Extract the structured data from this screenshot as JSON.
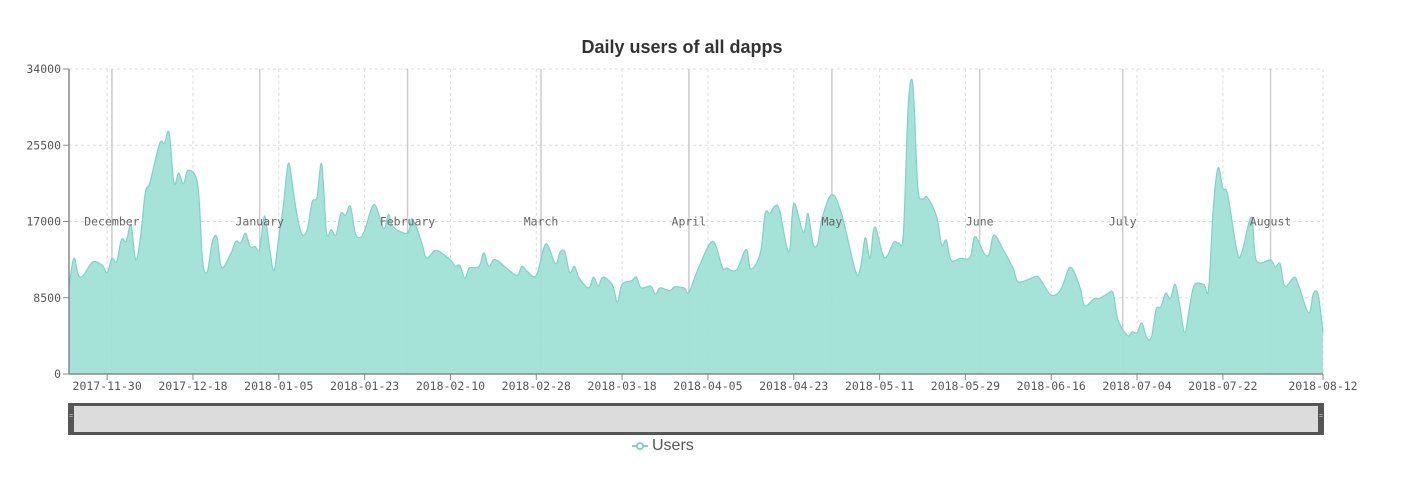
{
  "chart_data": {
    "type": "area",
    "title": "Daily users of all dapps",
    "x_start_date": "2017-11-22",
    "x_unit": "days since start date",
    "xlim_days": [
      0,
      263
    ],
    "ylim": [
      0,
      34000
    ],
    "y_ticks": [
      "0",
      "8500",
      "17000",
      "25500",
      "34000"
    ],
    "y_tick_values": [
      0,
      8500,
      17000,
      25500,
      34000
    ],
    "x_ticks": [
      {
        "day": 8,
        "label": "2017-11-30"
      },
      {
        "day": 26,
        "label": "2017-12-18"
      },
      {
        "day": 44,
        "label": "2018-01-05"
      },
      {
        "day": 62,
        "label": "2018-01-23"
      },
      {
        "day": 80,
        "label": "2018-02-10"
      },
      {
        "day": 98,
        "label": "2018-02-28"
      },
      {
        "day": 116,
        "label": "2018-03-18"
      },
      {
        "day": 134,
        "label": "2018-04-05"
      },
      {
        "day": 152,
        "label": "2018-04-23"
      },
      {
        "day": 170,
        "label": "2018-05-11"
      },
      {
        "day": 188,
        "label": "2018-05-29"
      },
      {
        "day": 206,
        "label": "2018-06-16"
      },
      {
        "day": 224,
        "label": "2018-07-04"
      },
      {
        "day": 242,
        "label": "2018-07-22"
      },
      {
        "day": 263,
        "label": "2018-08-12"
      }
    ],
    "month_markers": [
      {
        "day": 9,
        "label": "December"
      },
      {
        "day": 40,
        "label": "January"
      },
      {
        "day": 71,
        "label": "February"
      },
      {
        "day": 99,
        "label": "March"
      },
      {
        "day": 130,
        "label": "April"
      },
      {
        "day": 160,
        "label": "May"
      },
      {
        "day": 191,
        "label": "June"
      },
      {
        "day": 221,
        "label": "July"
      },
      {
        "day": 252,
        "label": "August"
      }
    ],
    "grid": true,
    "legend": {
      "position": "bottom-center",
      "entries": [
        "Users"
      ]
    },
    "series": [
      {
        "name": "Users",
        "color": "#7ed3c4",
        "fill": "#a0e0d6",
        "points": [
          [
            0,
            9700
          ],
          [
            1,
            12900
          ],
          [
            2,
            11000
          ],
          [
            3,
            11000
          ],
          [
            5,
            12500
          ],
          [
            7,
            12100
          ],
          [
            8,
            11300
          ],
          [
            9,
            12900
          ],
          [
            10,
            12500
          ],
          [
            11,
            15000
          ],
          [
            12,
            14800
          ],
          [
            13,
            16600
          ],
          [
            14,
            12700
          ],
          [
            15,
            15300
          ],
          [
            16,
            20200
          ],
          [
            17,
            21400
          ],
          [
            19,
            25700
          ],
          [
            20,
            25700
          ],
          [
            21,
            26900
          ],
          [
            22,
            21300
          ],
          [
            23,
            22400
          ],
          [
            24,
            21200
          ],
          [
            25,
            22700
          ],
          [
            27,
            21100
          ],
          [
            28,
            12700
          ],
          [
            29,
            11400
          ],
          [
            30,
            14600
          ],
          [
            31,
            15300
          ],
          [
            32,
            11900
          ],
          [
            34,
            13500
          ],
          [
            35,
            14800
          ],
          [
            36,
            14600
          ],
          [
            37,
            15700
          ],
          [
            38,
            14200
          ],
          [
            39,
            14200
          ],
          [
            40,
            13900
          ],
          [
            41,
            17600
          ],
          [
            42,
            14300
          ],
          [
            43,
            11500
          ],
          [
            44,
            15300
          ],
          [
            45,
            19000
          ],
          [
            46,
            23500
          ],
          [
            47,
            20500
          ],
          [
            48,
            17200
          ],
          [
            49,
            15500
          ],
          [
            50,
            16200
          ],
          [
            51,
            19200
          ],
          [
            52,
            19700
          ],
          [
            53,
            23400
          ],
          [
            54,
            15800
          ],
          [
            55,
            16100
          ],
          [
            56,
            15500
          ],
          [
            57,
            17900
          ],
          [
            58,
            17700
          ],
          [
            59,
            18700
          ],
          [
            60,
            15800
          ],
          [
            61,
            15200
          ],
          [
            62,
            16000
          ],
          [
            64,
            18900
          ],
          [
            66,
            16200
          ],
          [
            67,
            17800
          ],
          [
            68,
            16400
          ],
          [
            71,
            15700
          ],
          [
            72,
            17300
          ],
          [
            74,
            14600
          ],
          [
            75,
            12900
          ],
          [
            77,
            13800
          ],
          [
            80,
            12700
          ],
          [
            81,
            12000
          ],
          [
            82,
            12100
          ],
          [
            83,
            10700
          ],
          [
            84,
            11800
          ],
          [
            86,
            12000
          ],
          [
            87,
            13500
          ],
          [
            88,
            12000
          ],
          [
            89,
            12700
          ],
          [
            90,
            12600
          ],
          [
            92,
            11700
          ],
          [
            94,
            11000
          ],
          [
            95,
            12000
          ],
          [
            96,
            11500
          ],
          [
            98,
            11000
          ],
          [
            100,
            14500
          ],
          [
            102,
            12300
          ],
          [
            103,
            13600
          ],
          [
            104,
            13600
          ],
          [
            105,
            11300
          ],
          [
            106,
            12000
          ],
          [
            107,
            10700
          ],
          [
            109,
            9600
          ],
          [
            110,
            10800
          ],
          [
            111,
            9800
          ],
          [
            112,
            10800
          ],
          [
            114,
            9900
          ],
          [
            115,
            8000
          ],
          [
            116,
            10000
          ],
          [
            118,
            10400
          ],
          [
            119,
            10800
          ],
          [
            120,
            9600
          ],
          [
            122,
            9800
          ],
          [
            123,
            8900
          ],
          [
            124,
            9600
          ],
          [
            126,
            9300
          ],
          [
            127,
            9700
          ],
          [
            129,
            9600
          ],
          [
            130,
            9100
          ],
          [
            132,
            11800
          ],
          [
            135,
            14800
          ],
          [
            137,
            11900
          ],
          [
            138,
            11800
          ],
          [
            140,
            11600
          ],
          [
            142,
            13900
          ],
          [
            143,
            11700
          ],
          [
            145,
            13500
          ],
          [
            146,
            17900
          ],
          [
            147,
            17900
          ],
          [
            148,
            18700
          ],
          [
            149,
            18300
          ],
          [
            151,
            13600
          ],
          [
            152,
            19000
          ],
          [
            154,
            15800
          ],
          [
            155,
            17900
          ],
          [
            156,
            14600
          ],
          [
            157,
            14500
          ],
          [
            158,
            17500
          ],
          [
            160,
            20000
          ],
          [
            162,
            17900
          ],
          [
            165,
            11400
          ],
          [
            166,
            11900
          ],
          [
            167,
            15200
          ],
          [
            168,
            12900
          ],
          [
            169,
            16400
          ],
          [
            171,
            13000
          ],
          [
            173,
            14700
          ],
          [
            174,
            14600
          ],
          [
            175,
            15700
          ],
          [
            176,
            29800
          ],
          [
            177,
            32200
          ],
          [
            178,
            20900
          ],
          [
            179,
            19500
          ],
          [
            180,
            19700
          ],
          [
            182,
            17500
          ],
          [
            183,
            14400
          ],
          [
            184,
            14900
          ],
          [
            185,
            12700
          ],
          [
            187,
            12900
          ],
          [
            189,
            13000
          ],
          [
            190,
            15300
          ],
          [
            192,
            13400
          ],
          [
            193,
            13400
          ],
          [
            194,
            15500
          ],
          [
            196,
            13800
          ],
          [
            198,
            11800
          ],
          [
            199,
            10300
          ],
          [
            201,
            10500
          ],
          [
            203,
            10900
          ],
          [
            204,
            10300
          ],
          [
            206,
            8800
          ],
          [
            208,
            9400
          ],
          [
            210,
            11900
          ],
          [
            212,
            9700
          ],
          [
            213,
            7600
          ],
          [
            215,
            8400
          ],
          [
            216,
            8400
          ],
          [
            218,
            9000
          ],
          [
            219,
            9000
          ],
          [
            220,
            6000
          ],
          [
            222,
            4300
          ],
          [
            223,
            4700
          ],
          [
            224,
            4600
          ],
          [
            225,
            5700
          ],
          [
            226,
            4100
          ],
          [
            227,
            4100
          ],
          [
            228,
            7200
          ],
          [
            229,
            7500
          ],
          [
            230,
            9000
          ],
          [
            231,
            8400
          ],
          [
            232,
            10000
          ],
          [
            233,
            7500
          ],
          [
            234,
            4600
          ],
          [
            235,
            7400
          ],
          [
            236,
            9900
          ],
          [
            238,
            10000
          ],
          [
            239,
            9500
          ],
          [
            240,
            18600
          ],
          [
            241,
            23000
          ],
          [
            242,
            20700
          ],
          [
            243,
            20000
          ],
          [
            245,
            13600
          ],
          [
            246,
            13600
          ],
          [
            248,
            17500
          ],
          [
            249,
            12700
          ],
          [
            252,
            12700
          ],
          [
            253,
            11900
          ],
          [
            254,
            12300
          ],
          [
            255,
            9800
          ],
          [
            257,
            10800
          ],
          [
            258,
            9700
          ],
          [
            260,
            6800
          ],
          [
            261,
            9000
          ],
          [
            262,
            8800
          ],
          [
            263,
            4600
          ]
        ]
      }
    ]
  }
}
